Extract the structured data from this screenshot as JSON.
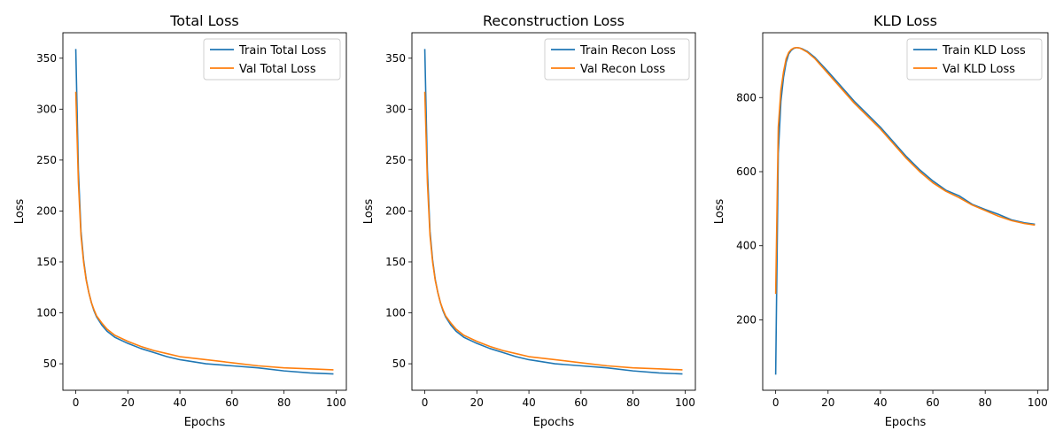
{
  "chart_data": [
    {
      "type": "line",
      "title": "Total Loss",
      "xlabel": "Epochs",
      "ylabel": "Loss",
      "xlim": [
        -4.95,
        103.95
      ],
      "ylim": [
        24,
        375
      ],
      "xticks": [
        0,
        20,
        40,
        60,
        80,
        100
      ],
      "yticks": [
        50,
        100,
        150,
        200,
        250,
        300,
        350
      ],
      "legend_position": "top-right",
      "grid": false,
      "series": [
        {
          "name": "Train Total Loss",
          "color": "#1f77b4",
          "x": [
            0,
            1,
            2,
            3,
            4,
            5,
            6,
            7,
            8,
            10,
            12,
            15,
            20,
            25,
            30,
            35,
            40,
            50,
            60,
            70,
            80,
            90,
            99
          ],
          "values": [
            359,
            240,
            180,
            152,
            133,
            120,
            110,
            102,
            96,
            88,
            82,
            76,
            70,
            65,
            61,
            57,
            54,
            50,
            48,
            46,
            43,
            41,
            40
          ]
        },
        {
          "name": "Val Total Loss",
          "color": "#ff7f0e",
          "x": [
            0,
            1,
            2,
            3,
            4,
            5,
            6,
            7,
            8,
            10,
            12,
            15,
            20,
            25,
            30,
            35,
            40,
            50,
            60,
            70,
            80,
            90,
            99
          ],
          "values": [
            317,
            228,
            176,
            150,
            132,
            120,
            110,
            103,
            97,
            90,
            84,
            78,
            72,
            67,
            63,
            60,
            57,
            54,
            51,
            48,
            46,
            45,
            44
          ]
        }
      ]
    },
    {
      "type": "line",
      "title": "Reconstruction Loss",
      "xlabel": "Epochs",
      "ylabel": "Loss",
      "xlim": [
        -4.95,
        103.95
      ],
      "ylim": [
        24,
        375
      ],
      "xticks": [
        0,
        20,
        40,
        60,
        80,
        100
      ],
      "yticks": [
        50,
        100,
        150,
        200,
        250,
        300,
        350
      ],
      "legend_position": "top-right",
      "grid": false,
      "series": [
        {
          "name": "Train Recon Loss",
          "color": "#1f77b4",
          "x": [
            0,
            1,
            2,
            3,
            4,
            5,
            6,
            7,
            8,
            10,
            12,
            15,
            20,
            25,
            30,
            35,
            40,
            50,
            60,
            70,
            80,
            90,
            99
          ],
          "values": [
            359,
            240,
            180,
            152,
            133,
            120,
            110,
            102,
            96,
            88,
            82,
            76,
            70,
            65,
            61,
            57,
            54,
            50,
            48,
            46,
            43,
            41,
            40
          ]
        },
        {
          "name": "Val Recon Loss",
          "color": "#ff7f0e",
          "x": [
            0,
            1,
            2,
            3,
            4,
            5,
            6,
            7,
            8,
            10,
            12,
            15,
            20,
            25,
            30,
            35,
            40,
            50,
            60,
            70,
            80,
            90,
            99
          ],
          "values": [
            317,
            228,
            176,
            150,
            132,
            120,
            110,
            103,
            97,
            90,
            84,
            78,
            72,
            67,
            63,
            60,
            57,
            54,
            51,
            48,
            46,
            45,
            44
          ]
        }
      ]
    },
    {
      "type": "line",
      "title": "KLD Loss",
      "xlabel": "Epochs",
      "ylabel": "Loss",
      "xlim": [
        -4.95,
        103.95
      ],
      "ylim": [
        10,
        975
      ],
      "xticks": [
        0,
        20,
        40,
        60,
        80,
        100
      ],
      "yticks": [
        200,
        400,
        600,
        800
      ],
      "legend_position": "top-right",
      "grid": false,
      "series": [
        {
          "name": "Train KLD Loss",
          "color": "#1f77b4",
          "x": [
            0,
            1,
            2,
            3,
            4,
            5,
            6,
            7,
            8,
            9,
            10,
            12,
            15,
            20,
            25,
            30,
            35,
            40,
            45,
            50,
            55,
            60,
            65,
            70,
            75,
            80,
            85,
            90,
            95,
            99
          ],
          "values": [
            52,
            650,
            790,
            855,
            895,
            918,
            928,
            933,
            935,
            934,
            932,
            925,
            908,
            870,
            830,
            790,
            755,
            720,
            680,
            640,
            605,
            575,
            550,
            535,
            512,
            498,
            485,
            470,
            462,
            458
          ]
        },
        {
          "name": "Val KLD Loss",
          "color": "#ff7f0e",
          "x": [
            0,
            1,
            2,
            3,
            4,
            5,
            6,
            7,
            8,
            9,
            10,
            12,
            15,
            20,
            25,
            30,
            35,
            40,
            45,
            50,
            55,
            60,
            65,
            70,
            75,
            80,
            85,
            90,
            95,
            99
          ],
          "values": [
            270,
            720,
            820,
            870,
            905,
            922,
            930,
            934,
            935,
            934,
            931,
            923,
            905,
            865,
            825,
            785,
            750,
            715,
            675,
            635,
            600,
            570,
            547,
            530,
            510,
            495,
            480,
            468,
            460,
            456
          ]
        }
      ]
    }
  ]
}
